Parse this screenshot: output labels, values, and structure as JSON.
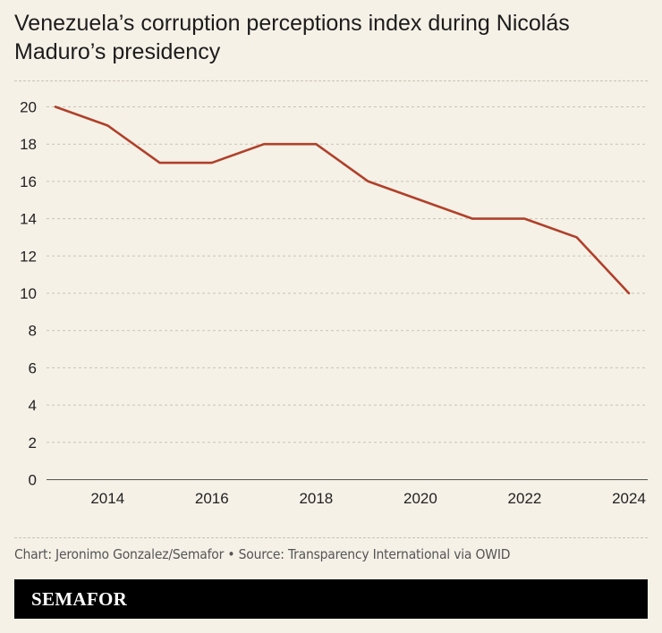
{
  "title": "Venezuela’s corruption perceptions index during Nicolás Maduro’s presidency",
  "credit": "Chart: Jeronimo Gonzalez/Semafor • Source: Transparency International via OWID",
  "brand": "SEMAFOR",
  "colors": {
    "line": "#b0402a",
    "background": "#f6f1e7",
    "grid": "#c9c3b6",
    "footer": "#000000"
  },
  "chart_data": {
    "type": "line",
    "x": [
      2013,
      2014,
      2015,
      2016,
      2017,
      2018,
      2019,
      2020,
      2021,
      2022,
      2023,
      2024
    ],
    "series": [
      {
        "values": [
          20,
          19,
          17,
          17,
          18,
          18,
          16,
          15,
          14,
          14,
          13,
          10
        ]
      }
    ],
    "xticks": [
      2014,
      2016,
      2018,
      2020,
      2022,
      2024
    ],
    "yticks": [
      0,
      2,
      4,
      6,
      8,
      10,
      12,
      14,
      16,
      18,
      20
    ],
    "xlim": [
      2013,
      2024
    ],
    "ylim": [
      0,
      20
    ],
    "grid": "horizontal dashed",
    "xlabel": "",
    "ylabel": ""
  }
}
